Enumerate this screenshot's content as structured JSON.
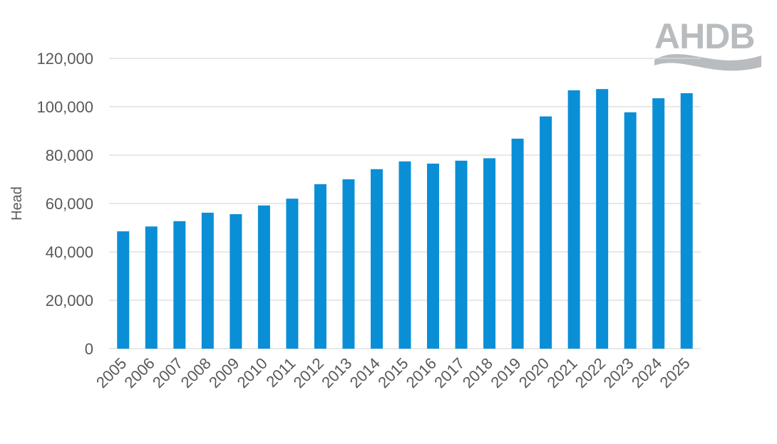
{
  "logo": {
    "text": "AHDB"
  },
  "chart_data": {
    "type": "bar",
    "title": "",
    "xlabel": "",
    "ylabel": "Head",
    "ylim": [
      0,
      120000
    ],
    "yticks": [
      0,
      20000,
      40000,
      60000,
      80000,
      100000,
      120000
    ],
    "ytick_labels": [
      "0",
      "20,000",
      "40,000",
      "60,000",
      "80,000",
      "100,000",
      "120,000"
    ],
    "grid": true,
    "bar_color": "#0a8fd6",
    "grid_color": "#d9d9d9",
    "categories": [
      "2005",
      "2006",
      "2007",
      "2008",
      "2009",
      "2010",
      "2011",
      "2012",
      "2013",
      "2014",
      "2015",
      "2016",
      "2017",
      "2018",
      "2019",
      "2020",
      "2021",
      "2022",
      "2023",
      "2024",
      "2025"
    ],
    "values": [
      48500,
      50500,
      52700,
      56200,
      55600,
      59200,
      62000,
      68000,
      70000,
      74200,
      77400,
      76500,
      77700,
      78700,
      86800,
      96000,
      106800,
      107300,
      97700,
      103500,
      105600
    ]
  }
}
